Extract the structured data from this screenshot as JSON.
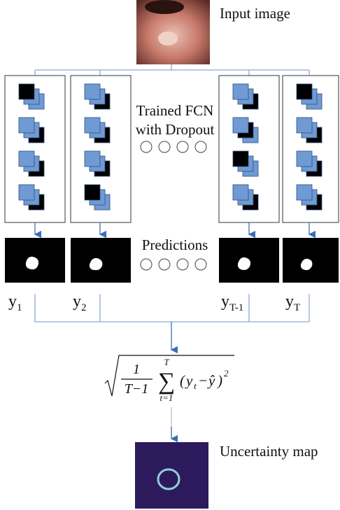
{
  "input_label": "Input image",
  "fcn_label": [
    "Trained FCN",
    "with Dropout"
  ],
  "predictions_label": "Predictions",
  "uncertainty_label": "Uncertainty map",
  "outputs": [
    {
      "base": "y",
      "sub": "1"
    },
    {
      "base": "y",
      "sub": "2"
    },
    {
      "base": "y",
      "sub": "T-1"
    },
    {
      "base": "y",
      "sub": "T"
    }
  ],
  "formula": {
    "numerator": "1",
    "denominator": "T−1",
    "sum": "∑",
    "sum_upper": "T",
    "sum_lower": "t=1",
    "open": "(",
    "y": "y",
    "y_sub": "t",
    "minus": "−",
    "yhat": "ŷ",
    "close": ")",
    "exp": "2"
  }
}
